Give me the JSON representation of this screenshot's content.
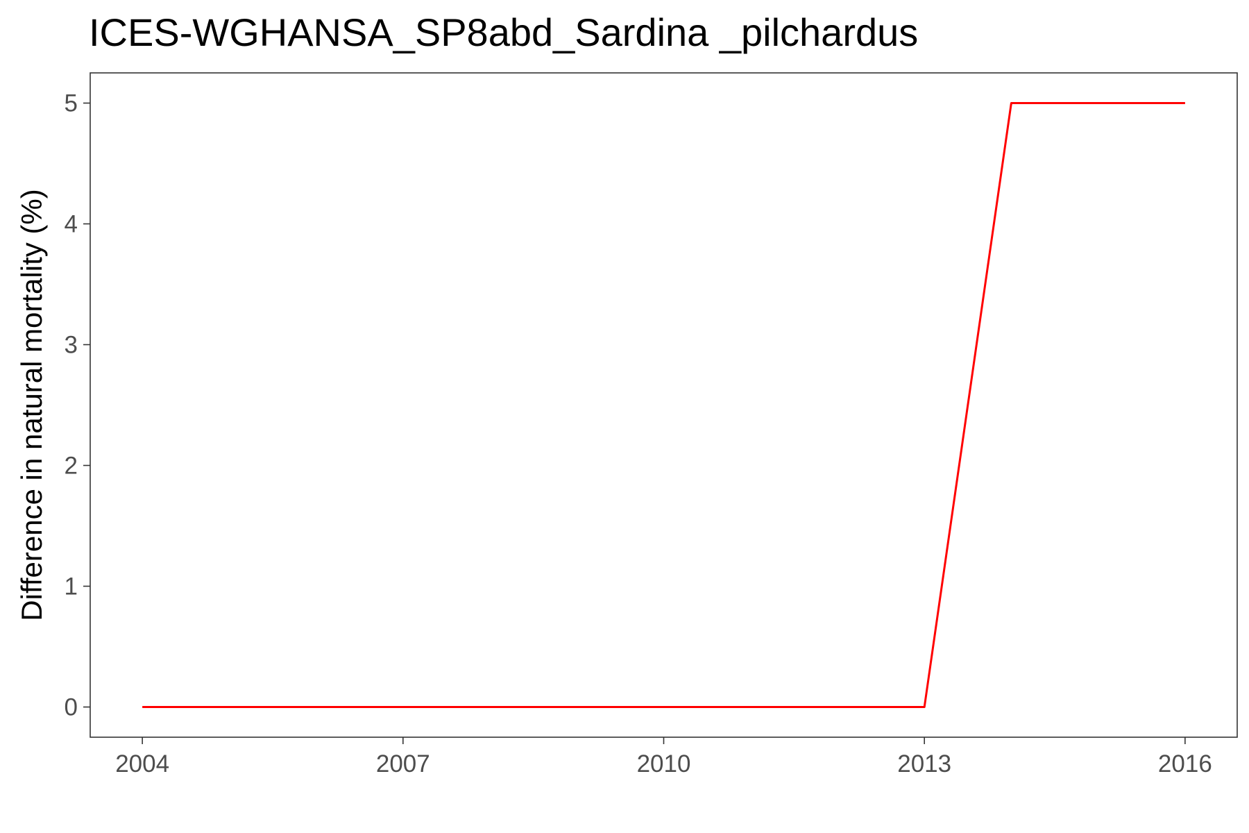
{
  "chart_data": {
    "type": "line",
    "title": "ICES-WGHANSA_SP8abd_Sardina _pilchardus",
    "xlabel": "",
    "ylabel": "Difference in natural mortality (%)",
    "x": [
      2004,
      2005,
      2006,
      2007,
      2008,
      2009,
      2010,
      2011,
      2012,
      2013,
      2014,
      2015,
      2016
    ],
    "series": [
      {
        "values": [
          0,
          0,
          0,
          0,
          0,
          0,
          0,
          0,
          0,
          0,
          5,
          5,
          5
        ],
        "color": "#ff0000"
      }
    ],
    "xlim": [
      2003.4,
      2016.6
    ],
    "ylim": [
      -0.25,
      5.25
    ],
    "xticks": [
      2004,
      2007,
      2010,
      2013,
      2016
    ],
    "xtick_labels": [
      "2004",
      "2007",
      "2010",
      "2013",
      "2016"
    ],
    "yticks": [
      0,
      1,
      2,
      3,
      4,
      5
    ],
    "ytick_labels": [
      "0",
      "1",
      "2",
      "3",
      "4",
      "5"
    ],
    "grid": false,
    "legend": "none"
  }
}
